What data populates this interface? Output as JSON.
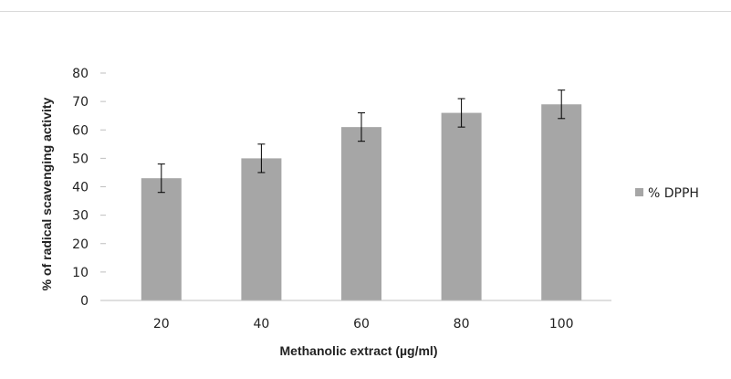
{
  "chart_data": {
    "type": "bar",
    "title": "",
    "xlabel": "Methanolic extract (µg/ml)",
    "ylabel": "% of radical scavenging activity",
    "categories": [
      "20",
      "40",
      "60",
      "80",
      "100"
    ],
    "series": [
      {
        "name": "% DPPH",
        "values": [
          43,
          50,
          61,
          66,
          69
        ],
        "errors": [
          5,
          5,
          5,
          5,
          5
        ],
        "color": "#a6a6a6"
      }
    ],
    "ylim": [
      0,
      80
    ],
    "yticks": [
      0,
      10,
      20,
      30,
      40,
      50,
      60,
      70,
      80
    ],
    "grid": false,
    "legend_position": "right"
  }
}
